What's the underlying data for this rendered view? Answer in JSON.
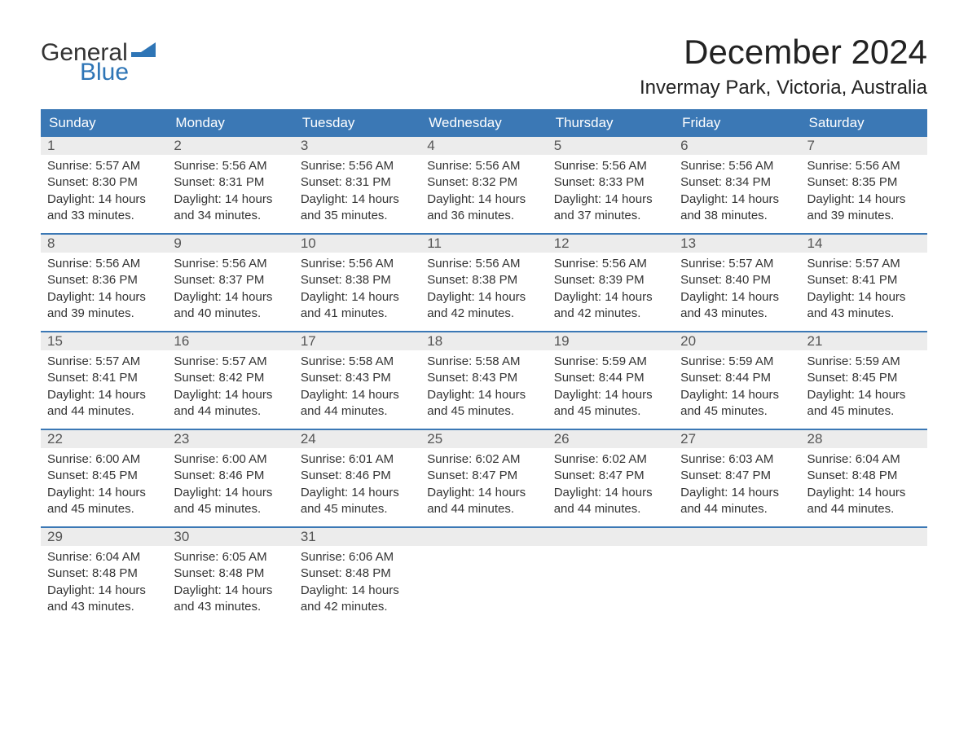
{
  "logo": {
    "text_general": "General",
    "text_blue": "Blue",
    "flag_color": "#2e75b6"
  },
  "title": "December 2024",
  "location": "Invermay Park, Victoria, Australia",
  "colors": {
    "header_bg": "#3b78b5",
    "header_text": "#ffffff",
    "daynum_bg": "#ececec",
    "daynum_text": "#555555",
    "body_text": "#333333",
    "week_divider": "#3b78b5"
  },
  "day_names": [
    "Sunday",
    "Monday",
    "Tuesday",
    "Wednesday",
    "Thursday",
    "Friday",
    "Saturday"
  ],
  "weeks": [
    [
      {
        "n": "1",
        "sunrise": "Sunrise: 5:57 AM",
        "sunset": "Sunset: 8:30 PM",
        "daylight1": "Daylight: 14 hours",
        "daylight2": "and 33 minutes."
      },
      {
        "n": "2",
        "sunrise": "Sunrise: 5:56 AM",
        "sunset": "Sunset: 8:31 PM",
        "daylight1": "Daylight: 14 hours",
        "daylight2": "and 34 minutes."
      },
      {
        "n": "3",
        "sunrise": "Sunrise: 5:56 AM",
        "sunset": "Sunset: 8:31 PM",
        "daylight1": "Daylight: 14 hours",
        "daylight2": "and 35 minutes."
      },
      {
        "n": "4",
        "sunrise": "Sunrise: 5:56 AM",
        "sunset": "Sunset: 8:32 PM",
        "daylight1": "Daylight: 14 hours",
        "daylight2": "and 36 minutes."
      },
      {
        "n": "5",
        "sunrise": "Sunrise: 5:56 AM",
        "sunset": "Sunset: 8:33 PM",
        "daylight1": "Daylight: 14 hours",
        "daylight2": "and 37 minutes."
      },
      {
        "n": "6",
        "sunrise": "Sunrise: 5:56 AM",
        "sunset": "Sunset: 8:34 PM",
        "daylight1": "Daylight: 14 hours",
        "daylight2": "and 38 minutes."
      },
      {
        "n": "7",
        "sunrise": "Sunrise: 5:56 AM",
        "sunset": "Sunset: 8:35 PM",
        "daylight1": "Daylight: 14 hours",
        "daylight2": "and 39 minutes."
      }
    ],
    [
      {
        "n": "8",
        "sunrise": "Sunrise: 5:56 AM",
        "sunset": "Sunset: 8:36 PM",
        "daylight1": "Daylight: 14 hours",
        "daylight2": "and 39 minutes."
      },
      {
        "n": "9",
        "sunrise": "Sunrise: 5:56 AM",
        "sunset": "Sunset: 8:37 PM",
        "daylight1": "Daylight: 14 hours",
        "daylight2": "and 40 minutes."
      },
      {
        "n": "10",
        "sunrise": "Sunrise: 5:56 AM",
        "sunset": "Sunset: 8:38 PM",
        "daylight1": "Daylight: 14 hours",
        "daylight2": "and 41 minutes."
      },
      {
        "n": "11",
        "sunrise": "Sunrise: 5:56 AM",
        "sunset": "Sunset: 8:38 PM",
        "daylight1": "Daylight: 14 hours",
        "daylight2": "and 42 minutes."
      },
      {
        "n": "12",
        "sunrise": "Sunrise: 5:56 AM",
        "sunset": "Sunset: 8:39 PM",
        "daylight1": "Daylight: 14 hours",
        "daylight2": "and 42 minutes."
      },
      {
        "n": "13",
        "sunrise": "Sunrise: 5:57 AM",
        "sunset": "Sunset: 8:40 PM",
        "daylight1": "Daylight: 14 hours",
        "daylight2": "and 43 minutes."
      },
      {
        "n": "14",
        "sunrise": "Sunrise: 5:57 AM",
        "sunset": "Sunset: 8:41 PM",
        "daylight1": "Daylight: 14 hours",
        "daylight2": "and 43 minutes."
      }
    ],
    [
      {
        "n": "15",
        "sunrise": "Sunrise: 5:57 AM",
        "sunset": "Sunset: 8:41 PM",
        "daylight1": "Daylight: 14 hours",
        "daylight2": "and 44 minutes."
      },
      {
        "n": "16",
        "sunrise": "Sunrise: 5:57 AM",
        "sunset": "Sunset: 8:42 PM",
        "daylight1": "Daylight: 14 hours",
        "daylight2": "and 44 minutes."
      },
      {
        "n": "17",
        "sunrise": "Sunrise: 5:58 AM",
        "sunset": "Sunset: 8:43 PM",
        "daylight1": "Daylight: 14 hours",
        "daylight2": "and 44 minutes."
      },
      {
        "n": "18",
        "sunrise": "Sunrise: 5:58 AM",
        "sunset": "Sunset: 8:43 PM",
        "daylight1": "Daylight: 14 hours",
        "daylight2": "and 45 minutes."
      },
      {
        "n": "19",
        "sunrise": "Sunrise: 5:59 AM",
        "sunset": "Sunset: 8:44 PM",
        "daylight1": "Daylight: 14 hours",
        "daylight2": "and 45 minutes."
      },
      {
        "n": "20",
        "sunrise": "Sunrise: 5:59 AM",
        "sunset": "Sunset: 8:44 PM",
        "daylight1": "Daylight: 14 hours",
        "daylight2": "and 45 minutes."
      },
      {
        "n": "21",
        "sunrise": "Sunrise: 5:59 AM",
        "sunset": "Sunset: 8:45 PM",
        "daylight1": "Daylight: 14 hours",
        "daylight2": "and 45 minutes."
      }
    ],
    [
      {
        "n": "22",
        "sunrise": "Sunrise: 6:00 AM",
        "sunset": "Sunset: 8:45 PM",
        "daylight1": "Daylight: 14 hours",
        "daylight2": "and 45 minutes."
      },
      {
        "n": "23",
        "sunrise": "Sunrise: 6:00 AM",
        "sunset": "Sunset: 8:46 PM",
        "daylight1": "Daylight: 14 hours",
        "daylight2": "and 45 minutes."
      },
      {
        "n": "24",
        "sunrise": "Sunrise: 6:01 AM",
        "sunset": "Sunset: 8:46 PM",
        "daylight1": "Daylight: 14 hours",
        "daylight2": "and 45 minutes."
      },
      {
        "n": "25",
        "sunrise": "Sunrise: 6:02 AM",
        "sunset": "Sunset: 8:47 PM",
        "daylight1": "Daylight: 14 hours",
        "daylight2": "and 44 minutes."
      },
      {
        "n": "26",
        "sunrise": "Sunrise: 6:02 AM",
        "sunset": "Sunset: 8:47 PM",
        "daylight1": "Daylight: 14 hours",
        "daylight2": "and 44 minutes."
      },
      {
        "n": "27",
        "sunrise": "Sunrise: 6:03 AM",
        "sunset": "Sunset: 8:47 PM",
        "daylight1": "Daylight: 14 hours",
        "daylight2": "and 44 minutes."
      },
      {
        "n": "28",
        "sunrise": "Sunrise: 6:04 AM",
        "sunset": "Sunset: 8:48 PM",
        "daylight1": "Daylight: 14 hours",
        "daylight2": "and 44 minutes."
      }
    ],
    [
      {
        "n": "29",
        "sunrise": "Sunrise: 6:04 AM",
        "sunset": "Sunset: 8:48 PM",
        "daylight1": "Daylight: 14 hours",
        "daylight2": "and 43 minutes."
      },
      {
        "n": "30",
        "sunrise": "Sunrise: 6:05 AM",
        "sunset": "Sunset: 8:48 PM",
        "daylight1": "Daylight: 14 hours",
        "daylight2": "and 43 minutes."
      },
      {
        "n": "31",
        "sunrise": "Sunrise: 6:06 AM",
        "sunset": "Sunset: 8:48 PM",
        "daylight1": "Daylight: 14 hours",
        "daylight2": "and 42 minutes."
      },
      {
        "empty": true
      },
      {
        "empty": true
      },
      {
        "empty": true
      },
      {
        "empty": true
      }
    ]
  ]
}
